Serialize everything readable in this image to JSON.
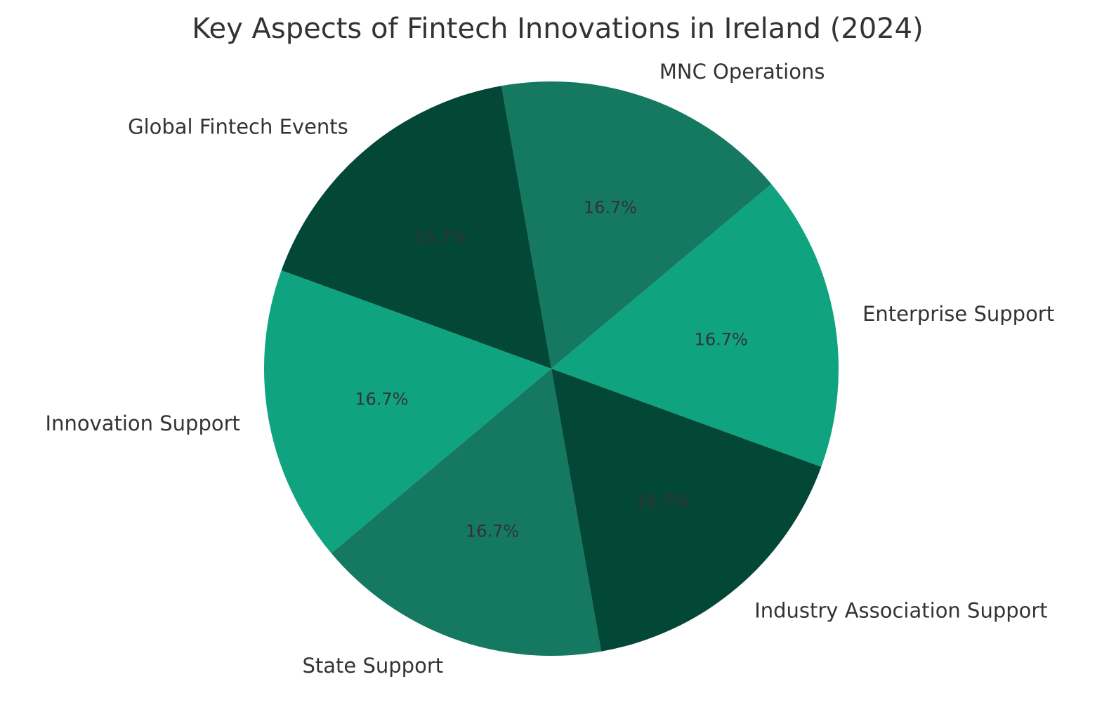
{
  "chart_data": {
    "type": "pie",
    "title": "Key Aspects of Fintech Innovations in Ireland (2024)",
    "categories": [
      "Enterprise Support",
      "MNC Operations",
      "Global Fintech Events",
      "Innovation Support",
      "State Support",
      "Industry Association Support"
    ],
    "values": [
      1,
      1,
      1,
      1,
      1,
      1
    ],
    "percent_labels": [
      "16.7%",
      "16.7%",
      "16.7%",
      "16.7%",
      "16.7%",
      "16.7%"
    ],
    "colors": [
      "#10a37f",
      "#147960",
      "#034737",
      "#10a37f",
      "#147960",
      "#034737"
    ],
    "legend": "none"
  }
}
